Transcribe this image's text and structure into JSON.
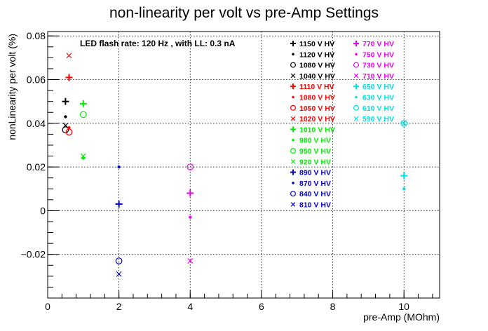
{
  "chart_data": {
    "type": "scatter",
    "title": "non-linearity per volt vs pre-Amp Settings",
    "xlabel": "pre-Amp (MOhm)",
    "ylabel": "nonLinearity per volt (%)",
    "annotation": "LED flash rate: 120 Hz , with LL: 0.3 nA",
    "xlim": [
      0,
      11
    ],
    "ylim": [
      -0.04,
      0.082
    ],
    "x_ticks": [
      {
        "v": 0,
        "label": "0"
      },
      {
        "v": 2,
        "label": "2"
      },
      {
        "v": 4,
        "label": "4"
      },
      {
        "v": 6,
        "label": "6"
      },
      {
        "v": 8,
        "label": "8"
      },
      {
        "v": 10,
        "label": "10"
      }
    ],
    "y_ticks": [
      {
        "v": -0.02,
        "label": "−0.02"
      },
      {
        "v": 0,
        "label": "0"
      },
      {
        "v": 0.02,
        "label": "0.02"
      },
      {
        "v": 0.04,
        "label": "0.04"
      },
      {
        "v": 0.06,
        "label": "0.06"
      },
      {
        "v": 0.08,
        "label": "0.08"
      }
    ],
    "grid": true,
    "series": [
      {
        "name": "1150 V HV",
        "color": "#000000",
        "marker": "plus",
        "x": [
          0.5
        ],
        "y": [
          0.05
        ]
      },
      {
        "name": "1120 V HV",
        "color": "#000000",
        "marker": "star",
        "x": [
          0.5
        ],
        "y": [
          0.043
        ]
      },
      {
        "name": "1080 V HV",
        "color": "#000000",
        "marker": "circle",
        "x": [
          0.5
        ],
        "y": [
          0.037
        ]
      },
      {
        "name": "1040 V HV",
        "color": "#000000",
        "marker": "cross",
        "x": [
          0.5
        ],
        "y": [
          0.039
        ]
      },
      {
        "name": "1110 V HV",
        "color": "#ff0000",
        "marker": "plus",
        "x": [
          0.6
        ],
        "y": [
          0.061
        ]
      },
      {
        "name": "1080 V HV",
        "color": "#ff0000",
        "marker": "star",
        "x": [
          0.6
        ],
        "y": [
          0.038
        ]
      },
      {
        "name": "1050 V HV",
        "color": "#ff0000",
        "marker": "circle",
        "x": [
          0.6
        ],
        "y": [
          0.036
        ]
      },
      {
        "name": "1020 V HV",
        "color": "#ff0000",
        "marker": "cross",
        "x": [
          0.6
        ],
        "y": [
          0.071
        ]
      },
      {
        "name": "1010 V HV",
        "color": "#00ee00",
        "marker": "plus",
        "x": [
          1.0
        ],
        "y": [
          0.049
        ]
      },
      {
        "name": "980 V HV",
        "color": "#00ee00",
        "marker": "star",
        "x": [
          1.0
        ],
        "y": [
          0.024
        ]
      },
      {
        "name": "950 V HV",
        "color": "#00ee00",
        "marker": "circle",
        "x": [
          1.0
        ],
        "y": [
          0.044
        ]
      },
      {
        "name": "920 V HV",
        "color": "#00ee00",
        "marker": "cross",
        "x": [
          1.0
        ],
        "y": [
          0.025
        ]
      },
      {
        "name": "890 V HV",
        "color": "#0000cc",
        "marker": "plus",
        "x": [
          2.0
        ],
        "y": [
          0.003
        ]
      },
      {
        "name": "870 V HV",
        "color": "#0000cc",
        "marker": "star",
        "x": [
          2.0
        ],
        "y": [
          0.02
        ]
      },
      {
        "name": "840 V HV",
        "color": "#0000cc",
        "marker": "circle",
        "x": [
          2.0
        ],
        "y": [
          -0.023
        ]
      },
      {
        "name": "810 V HV",
        "color": "#0000cc",
        "marker": "cross",
        "x": [
          2.0
        ],
        "y": [
          -0.029
        ]
      },
      {
        "name": "770 V HV",
        "color": "#ee00ee",
        "marker": "plus",
        "x": [
          4.0
        ],
        "y": [
          0.008
        ]
      },
      {
        "name": "750 V HV",
        "color": "#ee00ee",
        "marker": "star",
        "x": [
          4.0
        ],
        "y": [
          -0.003
        ]
      },
      {
        "name": "730 V HV",
        "color": "#ee00ee",
        "marker": "circle",
        "x": [
          4.0
        ],
        "y": [
          0.02
        ]
      },
      {
        "name": "710 V HV",
        "color": "#ee00ee",
        "marker": "cross",
        "x": [
          4.0
        ],
        "y": [
          -0.023
        ]
      },
      {
        "name": "650 V HV",
        "color": "#00e0e0",
        "marker": "plus",
        "x": [
          10.0
        ],
        "y": [
          0.016
        ]
      },
      {
        "name": "630 V HV",
        "color": "#00e0e0",
        "marker": "star",
        "x": [
          10.0
        ],
        "y": [
          0.01
        ]
      },
      {
        "name": "610 V HV",
        "color": "#00e0e0",
        "marker": "circle",
        "x": [
          10.0
        ],
        "y": [
          0.04
        ]
      },
      {
        "name": "590 V HV",
        "color": "#00e0e0",
        "marker": "cross",
        "x": [
          10.0
        ],
        "y": [
          0.04
        ]
      }
    ],
    "legend_placement": "top-right, two columns"
  }
}
